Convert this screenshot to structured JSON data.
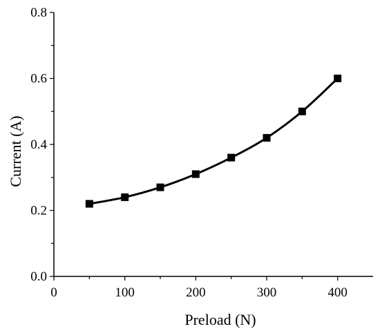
{
  "chart_data": {
    "type": "line",
    "title": "",
    "xlabel": "Preload (N)",
    "ylabel": "Current (A)",
    "xlim": [
      0,
      450
    ],
    "ylim": [
      0.0,
      0.8
    ],
    "x_ticks": [
      0,
      100,
      200,
      300,
      400
    ],
    "x_tick_labels": [
      "0",
      "100",
      "200",
      "300",
      "400"
    ],
    "y_ticks": [
      0.0,
      0.2,
      0.4,
      0.6,
      0.8
    ],
    "y_tick_labels": [
      "0.0",
      "0.2",
      "0.4",
      "0.6",
      "0.8"
    ],
    "grid": false,
    "legend": "none",
    "series": [
      {
        "marker": "square",
        "color": "#000000",
        "x": [
          50,
          100,
          150,
          200,
          250,
          300,
          350,
          400
        ],
        "y": [
          0.22,
          0.24,
          0.27,
          0.31,
          0.36,
          0.42,
          0.5,
          0.6
        ]
      }
    ]
  }
}
